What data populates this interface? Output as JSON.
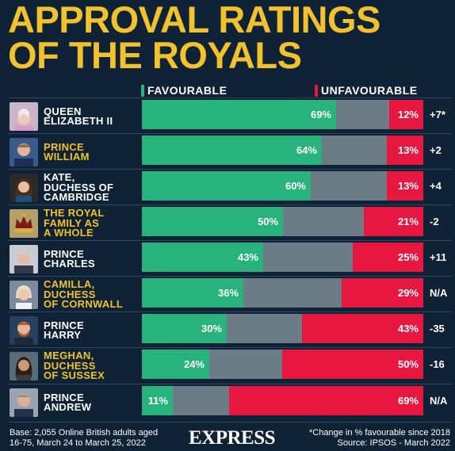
{
  "title": {
    "line1": "APPROVAL RATINGS",
    "line2": "OF THE ROYALS"
  },
  "legend": {
    "favourable": "FAVOURABLE",
    "unfavourable": "UNFAVOURABLE"
  },
  "colors": {
    "favourable": "#27b37b",
    "neutral": "#6c7c87",
    "unfavourable": "#e8173f",
    "background": "#0f2236",
    "title": "#f2c12e",
    "name_white": "#ffffff",
    "name_yellow": "#f2c12e"
  },
  "chart_data": {
    "type": "bar",
    "orientation": "horizontal",
    "stacked": true,
    "categories": [
      "QUEEN ELIZABETH II",
      "PRINCE WILLIAM",
      "KATE, DUCHESS OF CAMBRIDGE",
      "THE ROYAL FAMILY AS A WHOLE",
      "PRINCE CHARLES",
      "CAMILLA, DUCHESS OF CORNWALL",
      "PRINCE HARRY",
      "MEGHAN, DUCHESS OF SUSSEX",
      "PRINCE ANDREW"
    ],
    "series": [
      {
        "name": "FAVOURABLE",
        "values": [
          69,
          64,
          60,
          50,
          43,
          36,
          30,
          24,
          11
        ]
      },
      {
        "name": "UNFAVOURABLE",
        "values": [
          12,
          13,
          13,
          21,
          25,
          29,
          43,
          50,
          69
        ]
      }
    ],
    "change": [
      "+7*",
      "+2",
      "+4",
      "-2",
      "+11",
      "N/A",
      "-35",
      "-16",
      "N/A"
    ],
    "xlim": [
      0,
      100
    ],
    "unit": "%"
  },
  "rows": [
    {
      "name": "QUEEN\nELIZABETH II",
      "name_color": "#ffffff",
      "fav_label": "69%",
      "unfav_label": "12%",
      "change": "+7*",
      "avatar": "queen-portrait-icon"
    },
    {
      "name": "PRINCE\nWILLIAM",
      "name_color": "#f2c12e",
      "fav_label": "64%",
      "unfav_label": "13%",
      "change": "+2",
      "avatar": "william-portrait-icon"
    },
    {
      "name": "KATE,\nDUCHESS OF\nCAMBRIDGE",
      "name_color": "#ffffff",
      "fav_label": "60%",
      "unfav_label": "13%",
      "change": "+4",
      "avatar": "kate-portrait-icon"
    },
    {
      "name": "THE ROYAL\nFAMILY AS\nA WHOLE",
      "name_color": "#f2c12e",
      "fav_label": "50%",
      "unfav_label": "21%",
      "change": "-2",
      "avatar": "crown-icon"
    },
    {
      "name": "PRINCE\nCHARLES",
      "name_color": "#ffffff",
      "fav_label": "43%",
      "unfav_label": "25%",
      "change": "+11",
      "avatar": "charles-portrait-icon"
    },
    {
      "name": "CAMILLA,\nDUCHESS\nOF CORNWALL",
      "name_color": "#f2c12e",
      "fav_label": "36%",
      "unfav_label": "29%",
      "change": "N/A",
      "avatar": "camilla-portrait-icon"
    },
    {
      "name": "PRINCE\nHARRY",
      "name_color": "#ffffff",
      "fav_label": "30%",
      "unfav_label": "43%",
      "change": "-35",
      "avatar": "harry-portrait-icon"
    },
    {
      "name": "MEGHAN,\nDUCHESS\nOF SUSSEX",
      "name_color": "#f2c12e",
      "fav_label": "24%",
      "unfav_label": "50%",
      "change": "-16",
      "avatar": "meghan-portrait-icon"
    },
    {
      "name": "PRINCE\nANDREW",
      "name_color": "#ffffff",
      "fav_label": "11%",
      "unfav_label": "69%",
      "change": "N/A",
      "avatar": "andrew-portrait-icon"
    }
  ],
  "footer": {
    "base_line1": "Base: 2,055 Online British adults aged",
    "base_line2": "16-75, March 24 to March 25, 2022",
    "brand": "EXPRESS",
    "note_line1": "*Change in % favourable since 2018",
    "note_line2": "Source: IPSOS - March 2022"
  }
}
